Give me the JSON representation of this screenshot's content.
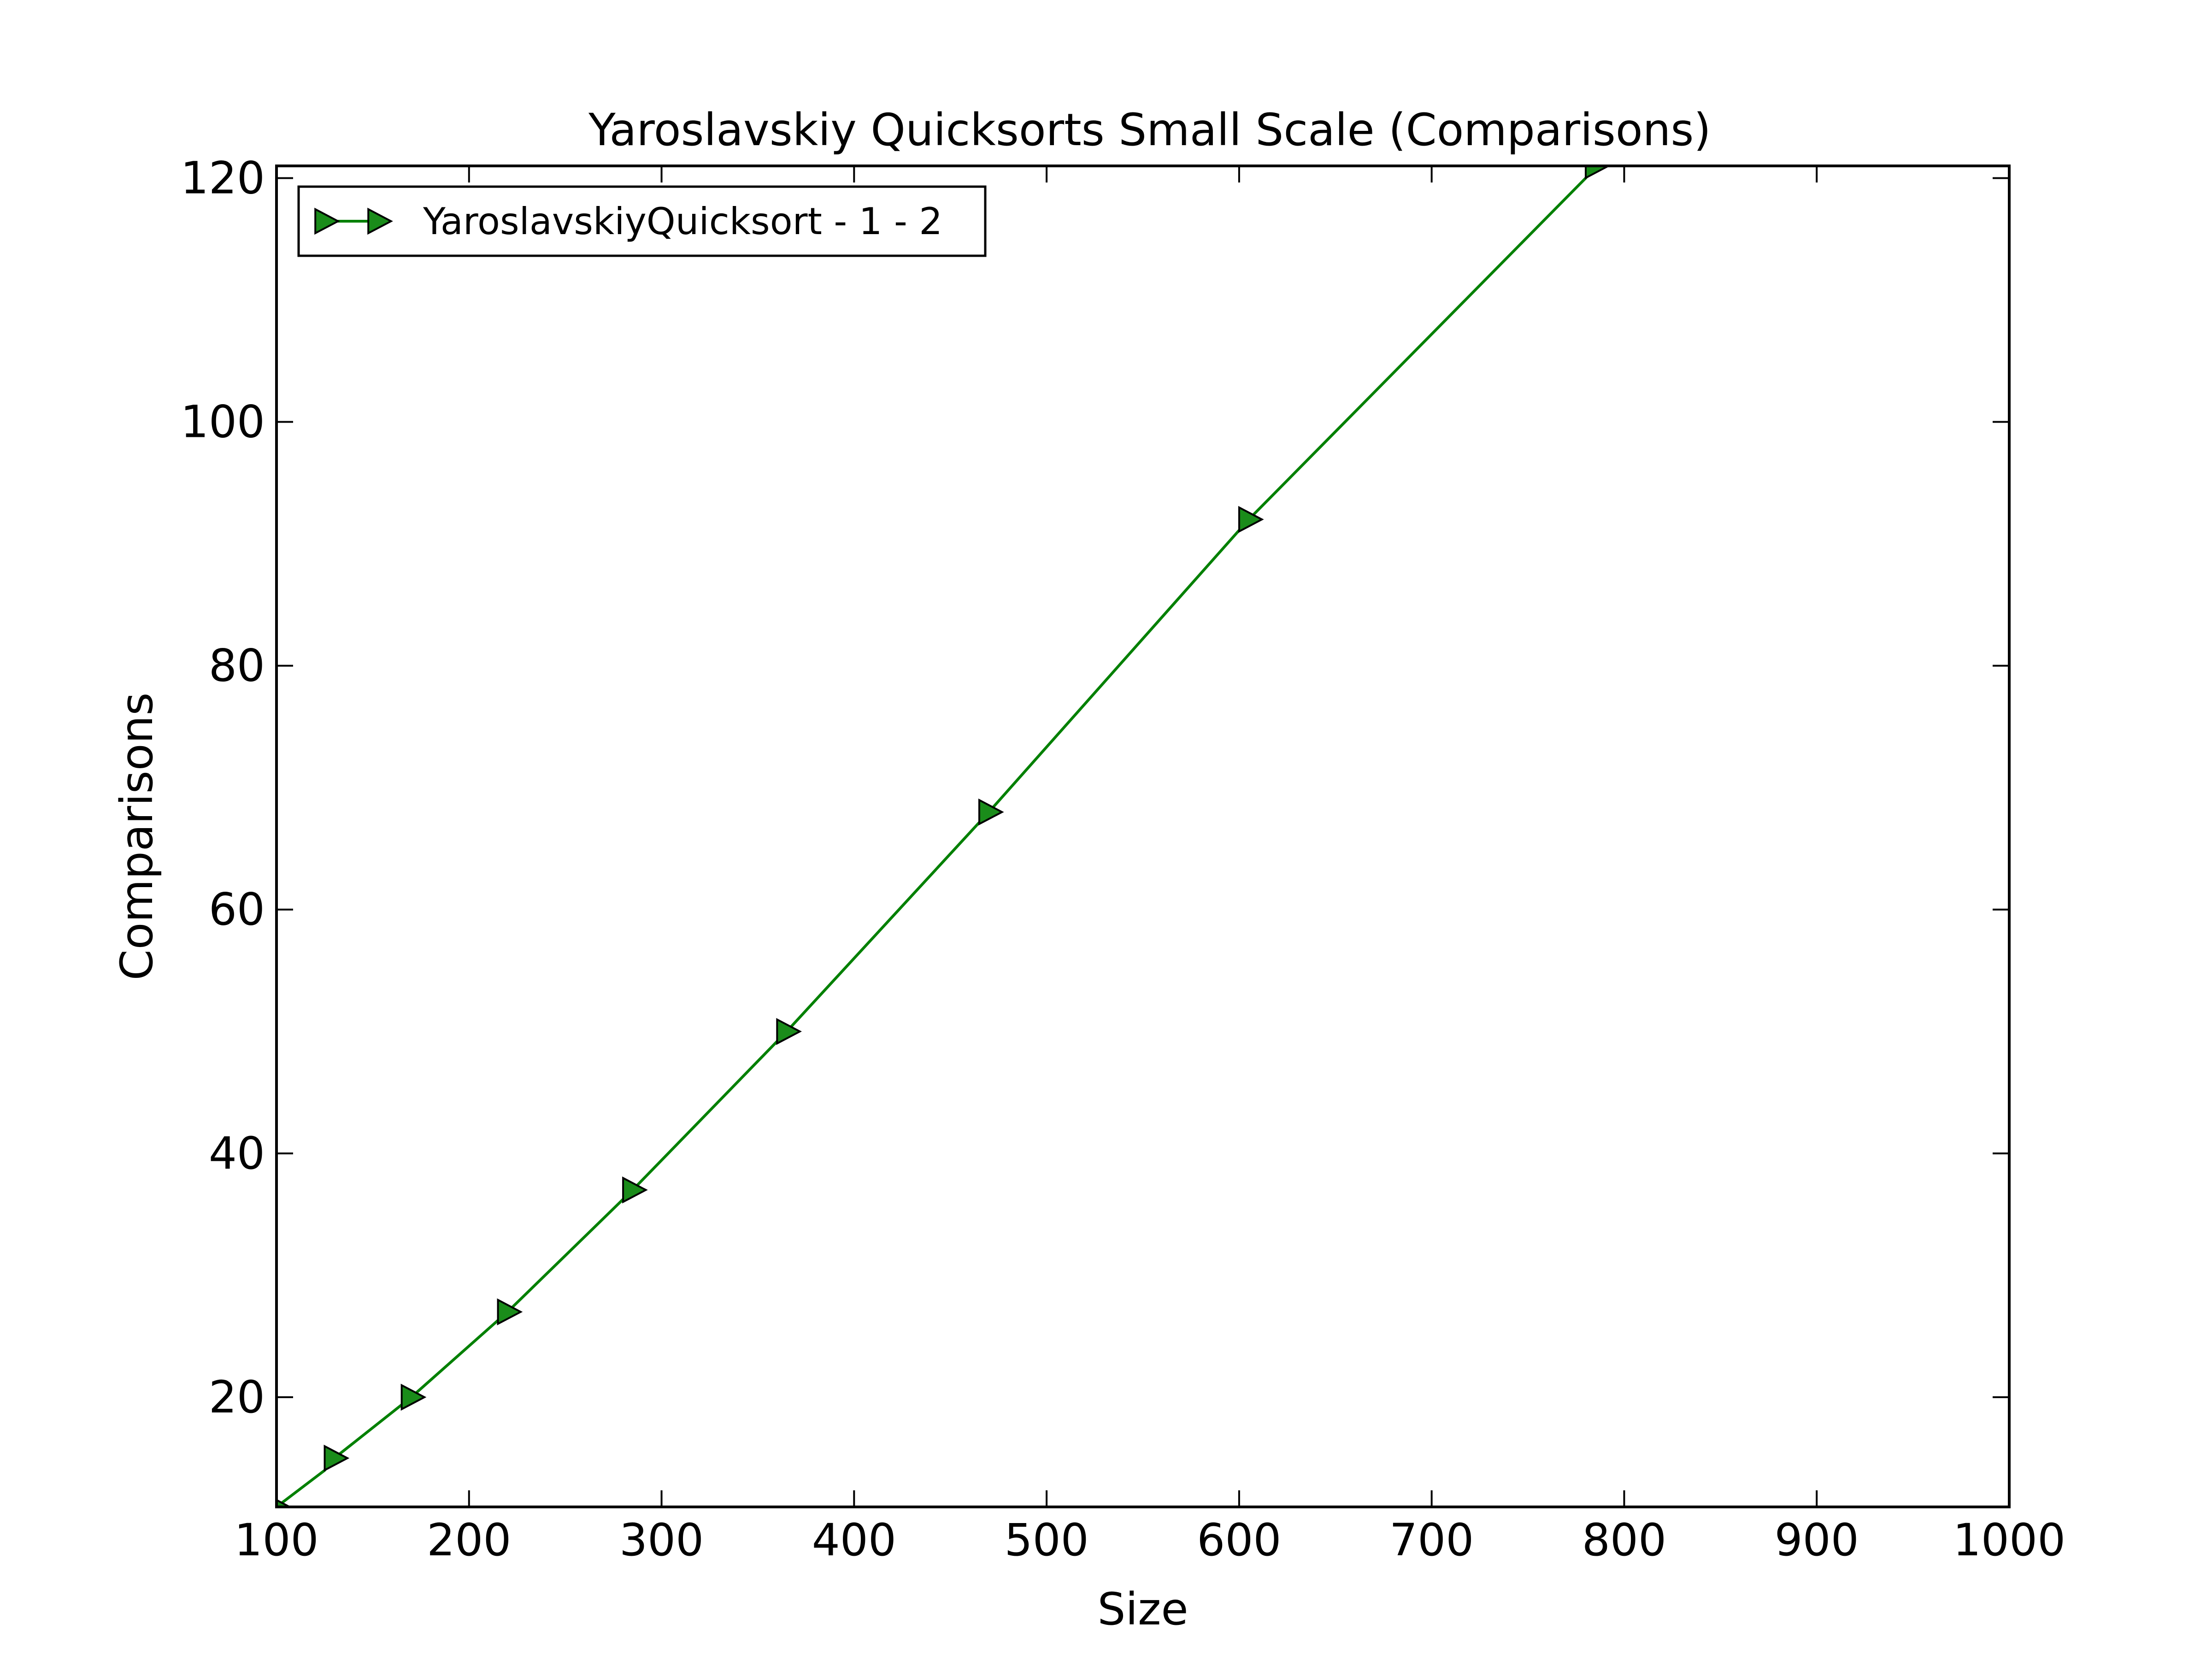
{
  "chart_data": {
    "type": "line",
    "title": "Yaroslavskiy Quicksorts Small Scale (Comparisons)",
    "xlabel": "Size",
    "ylabel": "Comparisons",
    "xlim": [
      100,
      1000
    ],
    "ylim": [
      11,
      121
    ],
    "xticks": [
      "100",
      "200",
      "300",
      "400",
      "500",
      "600",
      "700",
      "800",
      "900",
      "1000"
    ],
    "yticks": [
      "20",
      "40",
      "60",
      "80",
      "100",
      "120"
    ],
    "grid": false,
    "legend_position": "top-left",
    "series": [
      {
        "name": "YaroslavskiyQuicksort - 1 - 2",
        "color": "#008000",
        "marker_fill": "#1a8c1a",
        "marker": "triangle-right",
        "x": [
          100,
          125,
          130,
          170,
          220,
          285,
          365,
          470,
          605,
          780,
          785
        ],
        "y": [
          11,
          14,
          15,
          20,
          27,
          37,
          50,
          68,
          92,
          120,
          121
        ]
      }
    ]
  }
}
